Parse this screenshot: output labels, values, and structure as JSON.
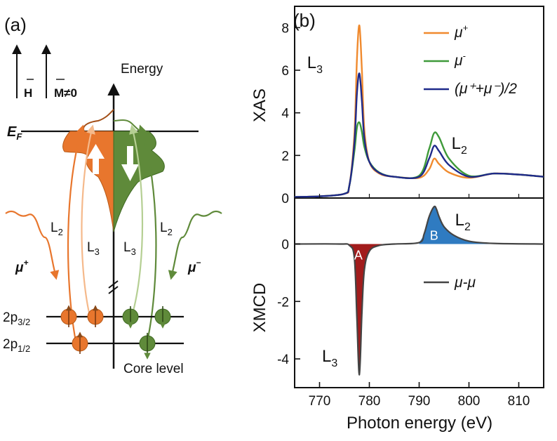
{
  "panel_a": {
    "label": "(a)",
    "h_vector": "H",
    "m_vector": "M≠0",
    "energy_label": "Energy",
    "fermi_label": "E",
    "fermi_sub": "F",
    "l2_label": "L",
    "l2_sub": "2",
    "l3_label": "L",
    "l3_sub": "3",
    "mu_plus_label": "μ",
    "mu_plus_sup": "+",
    "mu_minus_label": "μ",
    "mu_minus_sup": "−",
    "level_p32": "2p",
    "level_p32_sub": "3/2",
    "level_p12": "2p",
    "level_p12_sub": "1/2",
    "core_label": "Core level",
    "colors": {
      "orange": "#e8762d",
      "orange_light": "#f5b98b",
      "green": "#5f8a3a",
      "green_light": "#b5cf93",
      "brown": "#8a4a1a"
    }
  },
  "panel_b": {
    "label": "(b)"
  },
  "chart_data": [
    {
      "type": "line",
      "title": "XAS",
      "ylabel": "XAS",
      "xlabel": "Photon energy (eV)",
      "xlim": [
        765,
        815
      ],
      "ylim": [
        0,
        9
      ],
      "yticks": [
        0,
        2,
        4,
        6,
        8
      ],
      "xticks": [
        770,
        780,
        790,
        800,
        810
      ],
      "annotations": [
        {
          "text": "L",
          "sub": "3",
          "x": 767.5,
          "y": 6.1
        },
        {
          "text": "L",
          "sub": "2",
          "x": 796.5,
          "y": 2.3
        }
      ],
      "series": [
        {
          "name": "μ+",
          "color": "#f08a2e",
          "x": [
            765,
            770,
            775,
            776,
            777,
            777.5,
            778,
            778.5,
            779,
            780,
            782,
            785,
            790,
            792,
            793,
            794,
            796,
            800,
            805,
            810,
            815
          ],
          "y": [
            0.05,
            0.08,
            0.2,
            0.6,
            3.0,
            6.5,
            8.1,
            6.0,
            3.2,
            1.7,
            1.15,
            1.0,
            0.95,
            1.35,
            1.85,
            1.6,
            1.2,
            0.95,
            1.15,
            1.1,
            1.0
          ]
        },
        {
          "name": "μ-",
          "color": "#3f9a3a",
          "x": [
            765,
            770,
            775,
            776,
            777,
            777.5,
            778,
            778.5,
            779,
            780,
            782,
            785,
            790,
            792,
            793,
            794,
            796,
            800,
            805,
            810,
            815
          ],
          "y": [
            0.05,
            0.08,
            0.2,
            0.6,
            2.2,
            3.3,
            3.55,
            3.1,
            2.4,
            1.7,
            1.2,
            1.0,
            1.05,
            2.3,
            3.05,
            2.85,
            1.85,
            1.05,
            1.15,
            1.1,
            1.0
          ]
        },
        {
          "name": "(μ+ + μ-)/2",
          "color": "#1f2a8a",
          "x": [
            765,
            770,
            775,
            776,
            777,
            777.5,
            778,
            778.5,
            779,
            780,
            782,
            785,
            790,
            792,
            793,
            794,
            796,
            800,
            805,
            810,
            815
          ],
          "y": [
            0.05,
            0.08,
            0.2,
            0.6,
            2.6,
            4.9,
            5.85,
            4.55,
            2.8,
            1.7,
            1.18,
            1.0,
            1.0,
            1.85,
            2.45,
            2.2,
            1.55,
            1.0,
            1.15,
            1.1,
            1.0
          ]
        }
      ],
      "legend": [
        {
          "label": "μ",
          "sup": "+",
          "color": "#f08a2e"
        },
        {
          "label": "μ",
          "sup": "-",
          "color": "#3f9a3a"
        },
        {
          "label": "(μ⁺+μ⁻)/2",
          "sup": "",
          "color": "#1f2a8a"
        }
      ]
    },
    {
      "type": "area",
      "ylabel": "XMCD",
      "xlabel": "Photon energy (eV)",
      "xlim": [
        765,
        815
      ],
      "ylim": [
        -5,
        1.6
      ],
      "yticks": [
        -4,
        -2,
        0
      ],
      "xticks": [
        770,
        780,
        790,
        800,
        810
      ],
      "annotations": [
        {
          "text": "L",
          "sub": "3",
          "x": 770.5,
          "y": -4.1
        },
        {
          "text": "L",
          "sub": "2",
          "x": 797.2,
          "y": 0.65
        }
      ],
      "series": [
        {
          "name": "μ- - μ+",
          "color": "#444444",
          "x": [
            765,
            774,
            776,
            777,
            777.5,
            778,
            778.5,
            779,
            780,
            782,
            785,
            790,
            791,
            792,
            793,
            793.5,
            794,
            795,
            797,
            800,
            805,
            815
          ],
          "y": [
            0,
            0,
            -0.05,
            -0.5,
            -2.6,
            -4.55,
            -2.4,
            -0.9,
            -0.25,
            -0.05,
            0,
            0.05,
            0.35,
            0.95,
            1.3,
            1.2,
            0.95,
            0.6,
            0.3,
            0.1,
            0.02,
            0
          ]
        }
      ],
      "regions": [
        {
          "label": "A",
          "color": "#a21c1c",
          "sign": "negative"
        },
        {
          "label": "B",
          "color": "#2f7bc1",
          "sign": "positive"
        }
      ],
      "legend": [
        {
          "label": "μ-μ",
          "sup": "",
          "color": "#444444"
        }
      ]
    }
  ]
}
